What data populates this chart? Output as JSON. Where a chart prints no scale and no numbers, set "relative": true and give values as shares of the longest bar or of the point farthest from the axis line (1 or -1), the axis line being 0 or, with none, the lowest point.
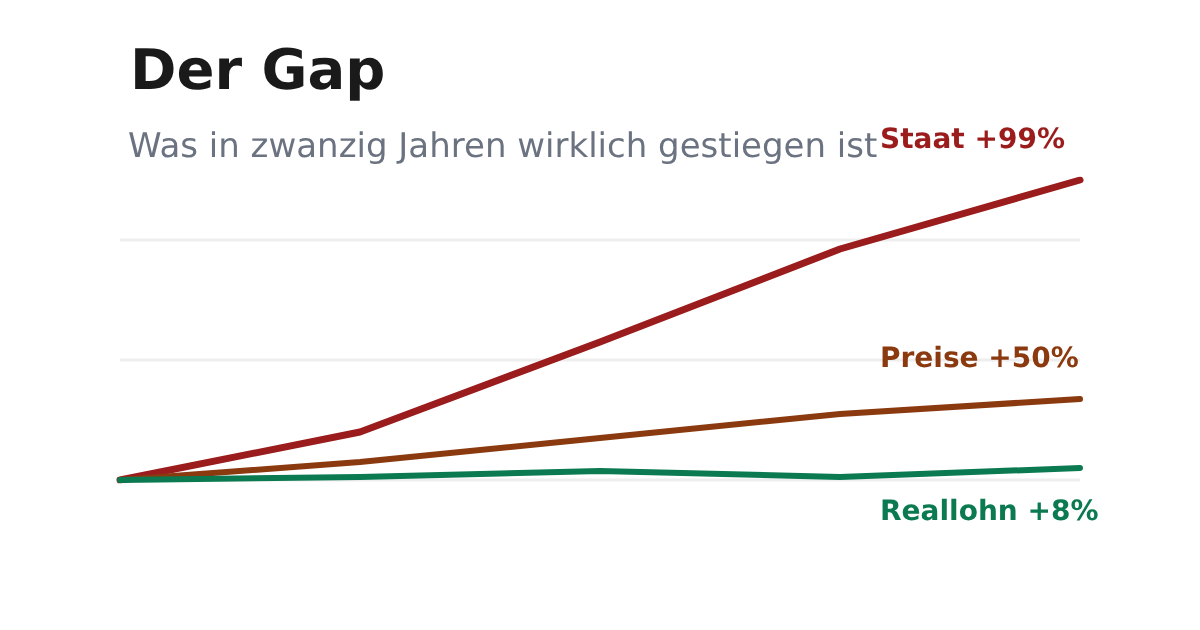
{
  "chart_data": {
    "type": "line",
    "title": "Der Gap",
    "subtitle": "Was in zwanzig Jahren wirklich gestiegen ist",
    "relative": true,
    "legend": false,
    "ref_lines": [
      {
        "axis": "y",
        "value": 0,
        "color": "#eeeeee"
      },
      {
        "axis": "y",
        "value": 0.4,
        "color": "#eeeeee"
      },
      {
        "axis": "y",
        "value": 0.8,
        "color": "#eeeeee"
      }
    ],
    "marker": "none",
    "line_style": "solid",
    "categories": [
      null,
      null,
      null,
      null,
      null
    ],
    "series": [
      {
        "name": "Staat +99%",
        "color": "#9b1c1c",
        "values": [
          0,
          0.16,
          0.46,
          0.77,
          1
        ]
      },
      {
        "name": "Preise +50%",
        "color": "#8b3a0f",
        "values": [
          0,
          0.06,
          0.14,
          0.22,
          0.27
        ]
      },
      {
        "name": "Reallohn +8%",
        "color": "#0b7a50",
        "values": [
          0,
          0.01,
          0.03,
          0.01,
          0.04
        ]
      }
    ]
  }
}
